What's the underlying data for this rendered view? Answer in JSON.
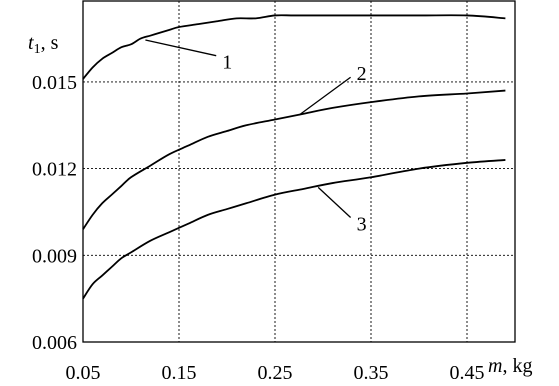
{
  "chart_data": {
    "type": "line",
    "x_axis": {
      "var": "m",
      "unit": ", kg",
      "lim": [
        0.05,
        0.5
      ],
      "ticks": [
        0.05,
        0.15,
        0.25,
        0.35,
        0.45
      ],
      "tick_labels": [
        "0.05",
        "0.15",
        "0.25",
        "0.35",
        "0.45"
      ]
    },
    "y_axis": {
      "var": "t",
      "sub": "1",
      "unit": ", s",
      "lim": [
        0.006,
        0.0178
      ],
      "ticks": [
        0.006,
        0.009,
        0.012,
        0.015
      ],
      "tick_labels": [
        "0.006",
        "0.009",
        "0.012",
        "0.015"
      ]
    },
    "grid": true,
    "series": [
      {
        "name": "1",
        "x": [
          0.05,
          0.06,
          0.07,
          0.08,
          0.09,
          0.1,
          0.11,
          0.12,
          0.13,
          0.14,
          0.15,
          0.17,
          0.19,
          0.21,
          0.23,
          0.25,
          0.27,
          0.3,
          0.35,
          0.4,
          0.45,
          0.49
        ],
        "y": [
          0.0151,
          0.0155,
          0.0158,
          0.016,
          0.0162,
          0.0163,
          0.0165,
          0.0166,
          0.0167,
          0.0168,
          0.0169,
          0.017,
          0.0171,
          0.0172,
          0.0172,
          0.0173,
          0.0173,
          0.0173,
          0.0173,
          0.0173,
          0.0173,
          0.0172
        ]
      },
      {
        "name": "2",
        "x": [
          0.05,
          0.06,
          0.07,
          0.08,
          0.09,
          0.1,
          0.12,
          0.14,
          0.16,
          0.18,
          0.2,
          0.22,
          0.25,
          0.28,
          0.31,
          0.35,
          0.4,
          0.45,
          0.49
        ],
        "y": [
          0.0099,
          0.0104,
          0.0108,
          0.0111,
          0.0114,
          0.0117,
          0.0121,
          0.0125,
          0.0128,
          0.0131,
          0.0133,
          0.0135,
          0.0137,
          0.0139,
          0.0141,
          0.0143,
          0.0145,
          0.0146,
          0.0147
        ]
      },
      {
        "name": "3",
        "x": [
          0.05,
          0.06,
          0.07,
          0.08,
          0.09,
          0.1,
          0.12,
          0.14,
          0.16,
          0.18,
          0.2,
          0.22,
          0.25,
          0.28,
          0.31,
          0.35,
          0.4,
          0.45,
          0.49
        ],
        "y": [
          0.0075,
          0.008,
          0.0083,
          0.0086,
          0.0089,
          0.0091,
          0.0095,
          0.0098,
          0.0101,
          0.0104,
          0.0106,
          0.0108,
          0.0111,
          0.0113,
          0.0115,
          0.0117,
          0.012,
          0.0122,
          0.0123
        ]
      }
    ],
    "curve_labels": [
      {
        "text": "1",
        "point": [
          0.115,
          0.01645
        ],
        "label_at": [
          0.195,
          0.0157
        ]
      },
      {
        "text": "2",
        "point": [
          0.275,
          0.01385
        ],
        "label_at": [
          0.335,
          0.0153
        ]
      },
      {
        "text": "3",
        "point": [
          0.295,
          0.01135
        ],
        "label_at": [
          0.335,
          0.0101
        ]
      }
    ]
  }
}
